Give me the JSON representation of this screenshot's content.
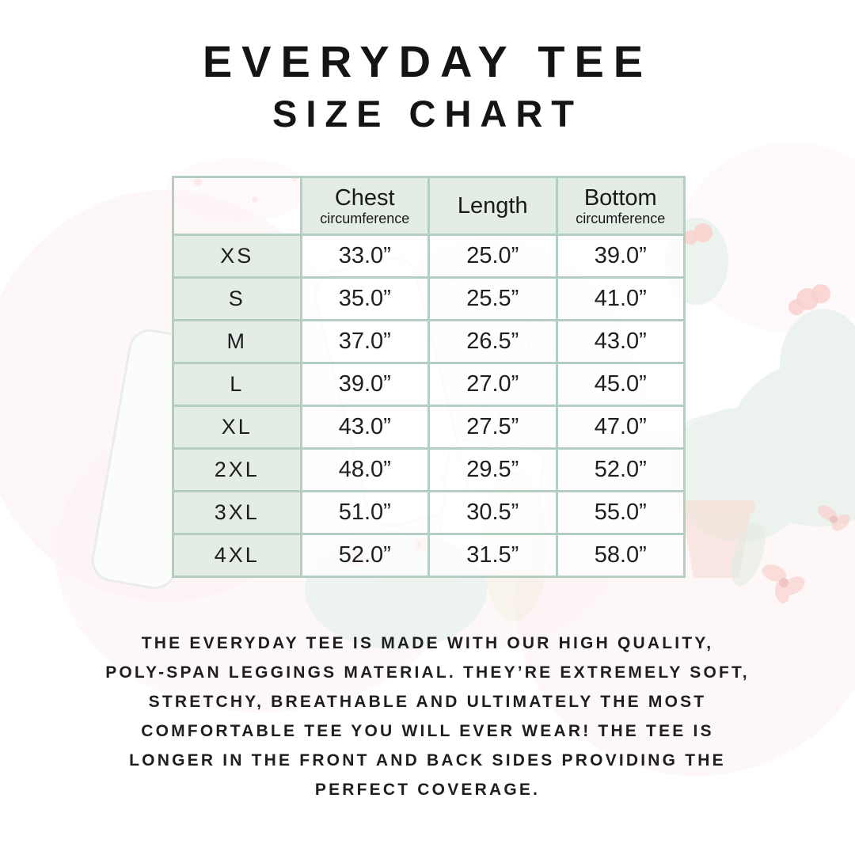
{
  "header": {
    "title": "EVERYDAY TEE",
    "subtitle": "SIZE CHART"
  },
  "size_table": {
    "columns": [
      {
        "label": "Chest",
        "sublabel": "circumference"
      },
      {
        "label": "Length",
        "sublabel": ""
      },
      {
        "label": "Bottom",
        "sublabel": "circumference"
      }
    ],
    "rows": [
      {
        "size": "XS",
        "chest": "33.0”",
        "length": "25.0”",
        "bottom": "39.0”"
      },
      {
        "size": "S",
        "chest": "35.0”",
        "length": "25.5”",
        "bottom": "41.0”"
      },
      {
        "size": "M",
        "chest": "37.0”",
        "length": "26.5”",
        "bottom": "43.0”"
      },
      {
        "size": "L",
        "chest": "39.0”",
        "length": "27.0”",
        "bottom": "45.0”"
      },
      {
        "size": "XL",
        "chest": "43.0”",
        "length": "27.5”",
        "bottom": "47.0”"
      },
      {
        "size": "2XL",
        "chest": "48.0”",
        "length": "29.5”",
        "bottom": "52.0”"
      },
      {
        "size": "3XL",
        "chest": "51.0”",
        "length": "30.5”",
        "bottom": "55.0”"
      },
      {
        "size": "4XL",
        "chest": "52.0”",
        "length": "31.5”",
        "bottom": "58.0”"
      }
    ]
  },
  "description": {
    "lines": [
      "THE EVERYDAY TEE IS MADE WITH OUR HIGH QUALITY,",
      "POLY-SPAN LEGGINGS MATERIAL. THEY’RE EXTREMELY SOFT,",
      "STRETCHY, BREATHABLE AND ULTIMATELY THE MOST",
      "COMFORTABLE TEE YOU WILL EVER WEAR! THE TEE IS",
      "LONGER IN THE FRONT AND BACK SIDES PROVIDING THE",
      "PERFECT COVERAGE."
    ]
  },
  "colors": {
    "table_border": "#b4cfc2",
    "header_cell_bg": "#e3ece5",
    "size_cell_bg": "#e3ece5",
    "value_cell_bg": "rgba(255,255,255,0.78)",
    "text": "#1d1d1d",
    "watermark_green": "#dde9e2",
    "watermark_pink_wash": "#fbe7ea",
    "flower_pink": "#f4aaa4",
    "pot_terracotta": "#f0c0ad"
  }
}
